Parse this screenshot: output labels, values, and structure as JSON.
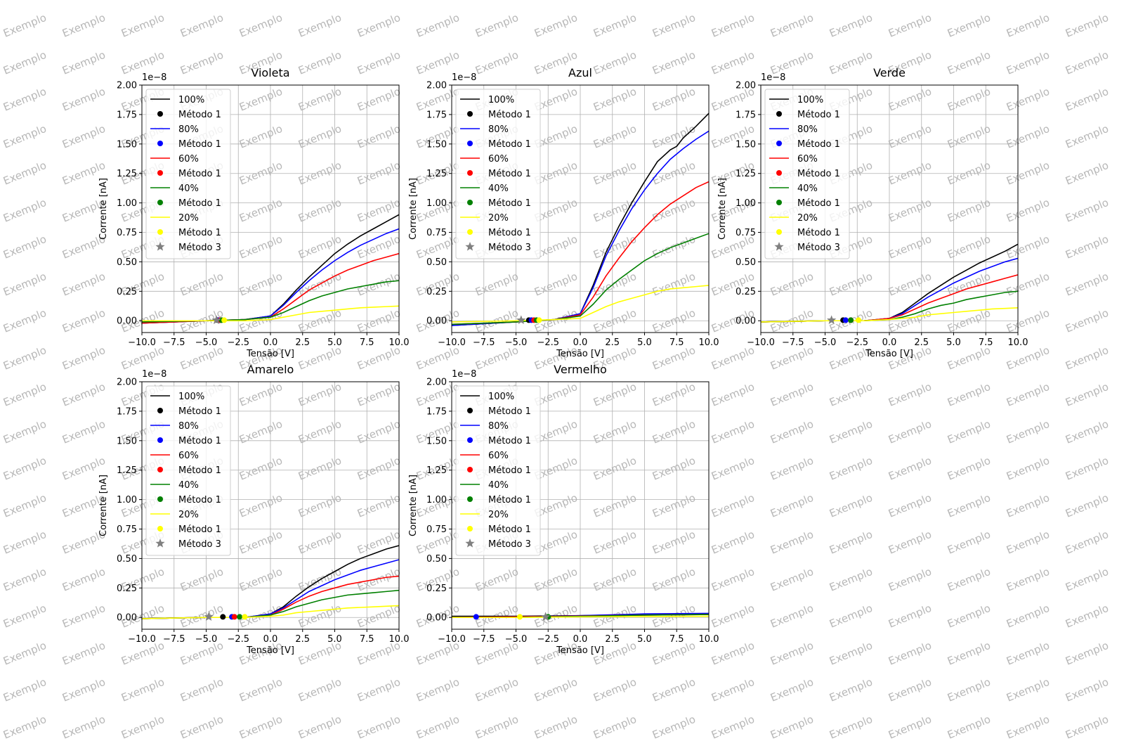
{
  "watermark_text": "Exemplo",
  "shared": {
    "xlabel": "Tensão [V]",
    "ylabel": "Corrente [nA]",
    "offset_text": "1e−8",
    "xlim": [
      -10,
      10
    ],
    "ylim": [
      -0.1,
      2.0
    ],
    "xticks": [
      "−10.0",
      "−7.5",
      "−5.0",
      "−2.5",
      "0.0",
      "2.5",
      "5.0",
      "7.5",
      "10.0"
    ],
    "xtick_values": [
      -10,
      -7.5,
      -5,
      -2.5,
      0,
      2.5,
      5,
      7.5,
      10
    ],
    "yticks": [
      "0.00",
      "0.25",
      "0.50",
      "0.75",
      "1.00",
      "1.25",
      "1.50",
      "1.75",
      "2.00"
    ],
    "ytick_values": [
      0,
      0.25,
      0.5,
      0.75,
      1.0,
      1.25,
      1.5,
      1.75,
      2.0
    ],
    "grid": true,
    "legend_position": "upper-left",
    "legend_entries": [
      {
        "label": "100%",
        "kind": "line",
        "color": "#000000"
      },
      {
        "label": "Método 1",
        "kind": "dot",
        "color": "#000000"
      },
      {
        "label": "80%",
        "kind": "line",
        "color": "#0000ff"
      },
      {
        "label": "Método 1",
        "kind": "dot",
        "color": "#0000ff"
      },
      {
        "label": "60%",
        "kind": "line",
        "color": "#ff0000"
      },
      {
        "label": "Método 1",
        "kind": "dot",
        "color": "#ff0000"
      },
      {
        "label": "40%",
        "kind": "line",
        "color": "#008000"
      },
      {
        "label": "Método 1",
        "kind": "dot",
        "color": "#008000"
      },
      {
        "label": "20%",
        "kind": "line",
        "color": "#ffff00"
      },
      {
        "label": "Método 1",
        "kind": "dot",
        "color": "#ffff00"
      },
      {
        "label": "Método 3",
        "kind": "star",
        "color": "#808080"
      }
    ]
  },
  "chart_data": [
    {
      "type": "line",
      "title": "Violeta",
      "series": [
        {
          "name": "100%",
          "color": "#000000",
          "x": [
            -10,
            -5,
            -2,
            0,
            1,
            2,
            3,
            4,
            5,
            6,
            7,
            8,
            9,
            10
          ],
          "y": [
            -0.02,
            0.0,
            0.01,
            0.04,
            0.14,
            0.26,
            0.37,
            0.47,
            0.57,
            0.65,
            0.72,
            0.78,
            0.84,
            0.9
          ]
        },
        {
          "name": "80%",
          "color": "#0000ff",
          "x": [
            -10,
            -5,
            -2,
            0,
            1,
            2,
            3,
            4,
            5,
            6,
            7,
            8,
            9,
            10
          ],
          "y": [
            -0.02,
            0.0,
            0.01,
            0.04,
            0.13,
            0.24,
            0.34,
            0.43,
            0.51,
            0.58,
            0.64,
            0.69,
            0.74,
            0.78
          ]
        },
        {
          "name": "60%",
          "color": "#ff0000",
          "x": [
            -10,
            -5,
            -2,
            0,
            1,
            2,
            3,
            4,
            5,
            6,
            7,
            8,
            9,
            10
          ],
          "y": [
            -0.02,
            0.0,
            0.01,
            0.03,
            0.1,
            0.18,
            0.26,
            0.32,
            0.38,
            0.43,
            0.47,
            0.51,
            0.54,
            0.57
          ]
        },
        {
          "name": "40%",
          "color": "#008000",
          "x": [
            -10,
            -5,
            -2,
            0,
            1,
            2,
            3,
            4,
            5,
            6,
            7,
            8,
            9,
            10
          ],
          "y": [
            -0.01,
            0.0,
            0.01,
            0.03,
            0.07,
            0.12,
            0.17,
            0.21,
            0.24,
            0.27,
            0.29,
            0.31,
            0.33,
            0.34
          ]
        },
        {
          "name": "20%",
          "color": "#ffff00",
          "x": [
            -10,
            -5,
            -2,
            0,
            1,
            2,
            3,
            4,
            5,
            6,
            7,
            8,
            9,
            10
          ],
          "y": [
            0.0,
            0.0,
            0.0,
            0.01,
            0.03,
            0.05,
            0.07,
            0.08,
            0.09,
            0.1,
            0.11,
            0.115,
            0.12,
            0.125
          ]
        }
      ],
      "metodo1_points": [
        {
          "color": "#000000",
          "x": -4.1,
          "y": 0.005
        },
        {
          "color": "#0000ff",
          "x": -4.0,
          "y": 0.005
        },
        {
          "color": "#ff0000",
          "x": -3.9,
          "y": 0.005
        },
        {
          "color": "#008000",
          "x": -3.8,
          "y": 0.005
        },
        {
          "color": "#ffff00",
          "x": -3.6,
          "y": 0.005
        }
      ],
      "metodo3_point": {
        "x": -4.2,
        "y": 0.005
      }
    },
    {
      "type": "line",
      "title": "Azul",
      "series": [
        {
          "name": "100%",
          "color": "#000000",
          "x": [
            -10,
            -5,
            -2,
            0,
            1,
            2,
            3,
            4,
            5,
            6,
            7,
            7.5,
            8,
            9,
            10
          ],
          "y": [
            -0.04,
            -0.01,
            0.01,
            0.06,
            0.3,
            0.58,
            0.8,
            1.0,
            1.18,
            1.35,
            1.45,
            1.48,
            1.55,
            1.65,
            1.76
          ]
        },
        {
          "name": "80%",
          "color": "#0000ff",
          "x": [
            -10,
            -5,
            -2,
            0,
            1,
            2,
            3,
            4,
            5,
            6,
            7,
            8,
            9,
            10
          ],
          "y": [
            -0.04,
            -0.01,
            0.01,
            0.06,
            0.28,
            0.55,
            0.76,
            0.95,
            1.11,
            1.25,
            1.37,
            1.46,
            1.54,
            1.61
          ]
        },
        {
          "name": "60%",
          "color": "#ff0000",
          "x": [
            -10,
            -5,
            -2,
            0,
            1,
            2,
            3,
            4,
            5,
            6,
            7,
            8,
            9,
            10
          ],
          "y": [
            -0.03,
            -0.01,
            0.01,
            0.05,
            0.2,
            0.38,
            0.53,
            0.67,
            0.79,
            0.9,
            0.99,
            1.06,
            1.13,
            1.18
          ]
        },
        {
          "name": "40%",
          "color": "#008000",
          "x": [
            -10,
            -5,
            -2,
            0,
            1,
            2,
            3,
            4,
            5,
            6,
            7,
            8,
            9,
            10
          ],
          "y": [
            -0.03,
            -0.01,
            0.01,
            0.04,
            0.14,
            0.26,
            0.35,
            0.43,
            0.51,
            0.57,
            0.62,
            0.66,
            0.7,
            0.74
          ]
        },
        {
          "name": "20%",
          "color": "#ffff00",
          "x": [
            -10,
            -5,
            -2,
            0,
            1,
            2,
            3,
            4,
            5,
            6,
            7,
            8,
            9,
            10
          ],
          "y": [
            -0.01,
            0.0,
            0.01,
            0.02,
            0.07,
            0.12,
            0.16,
            0.19,
            0.22,
            0.25,
            0.27,
            0.28,
            0.29,
            0.3
          ]
        }
      ],
      "metodo1_points": [
        {
          "color": "#000000",
          "x": -4.0,
          "y": 0.005
        },
        {
          "color": "#0000ff",
          "x": -3.8,
          "y": 0.005
        },
        {
          "color": "#ff0000",
          "x": -3.6,
          "y": 0.005
        },
        {
          "color": "#008000",
          "x": -3.4,
          "y": 0.005
        },
        {
          "color": "#ffff00",
          "x": -3.2,
          "y": 0.005
        }
      ],
      "metodo3_point": {
        "x": -4.6,
        "y": 0.005
      }
    },
    {
      "type": "line",
      "title": "Verde",
      "series": [
        {
          "name": "100%",
          "color": "#000000",
          "x": [
            -10,
            -5,
            -2,
            0,
            1,
            2,
            3,
            4,
            5,
            6,
            7,
            8,
            9,
            10
          ],
          "y": [
            -0.01,
            0.0,
            0.0,
            0.02,
            0.07,
            0.15,
            0.23,
            0.3,
            0.37,
            0.43,
            0.49,
            0.54,
            0.59,
            0.65
          ]
        },
        {
          "name": "80%",
          "color": "#0000ff",
          "x": [
            -10,
            -5,
            -2,
            0,
            1,
            2,
            3,
            4,
            5,
            6,
            7,
            8,
            9,
            10
          ],
          "y": [
            -0.01,
            0.0,
            0.0,
            0.02,
            0.06,
            0.13,
            0.2,
            0.26,
            0.32,
            0.37,
            0.42,
            0.46,
            0.5,
            0.53
          ]
        },
        {
          "name": "60%",
          "color": "#ff0000",
          "x": [
            -10,
            -5,
            -2,
            0,
            1,
            2,
            3,
            4,
            5,
            6,
            7,
            8,
            9,
            10
          ],
          "y": [
            -0.01,
            0.0,
            0.0,
            0.02,
            0.05,
            0.1,
            0.15,
            0.19,
            0.23,
            0.27,
            0.3,
            0.33,
            0.36,
            0.39
          ]
        },
        {
          "name": "40%",
          "color": "#008000",
          "x": [
            -10,
            -5,
            -2,
            0,
            1,
            2,
            3,
            4,
            5,
            6,
            7,
            8,
            9,
            10
          ],
          "y": [
            -0.01,
            0.0,
            0.0,
            0.01,
            0.03,
            0.06,
            0.1,
            0.13,
            0.15,
            0.18,
            0.2,
            0.22,
            0.24,
            0.25
          ]
        },
        {
          "name": "20%",
          "color": "#ffff00",
          "x": [
            -10,
            -5,
            -2,
            0,
            1,
            2,
            3,
            4,
            5,
            6,
            7,
            8,
            9,
            10
          ],
          "y": [
            -0.01,
            0.0,
            0.0,
            0.01,
            0.02,
            0.03,
            0.05,
            0.06,
            0.07,
            0.08,
            0.09,
            0.1,
            0.105,
            0.11
          ]
        }
      ],
      "metodo1_points": [
        {
          "color": "#000000",
          "x": -3.6,
          "y": 0.005
        },
        {
          "color": "#0000ff",
          "x": -3.4,
          "y": 0.005
        },
        {
          "color": "#ff0000",
          "x": -3.0,
          "y": 0.005
        },
        {
          "color": "#008000",
          "x": -3.0,
          "y": 0.005
        },
        {
          "color": "#ffff00",
          "x": -2.4,
          "y": 0.005
        }
      ],
      "metodo3_point": {
        "x": -4.5,
        "y": 0.005
      }
    },
    {
      "type": "line",
      "title": "Amarelo",
      "series": [
        {
          "name": "100%",
          "color": "#000000",
          "x": [
            -10,
            -5,
            -2,
            0,
            1,
            2,
            3,
            4,
            5,
            6,
            7,
            8,
            9,
            10
          ],
          "y": [
            -0.01,
            0.0,
            0.0,
            0.03,
            0.09,
            0.18,
            0.26,
            0.33,
            0.39,
            0.45,
            0.5,
            0.54,
            0.58,
            0.61
          ]
        },
        {
          "name": "80%",
          "color": "#0000ff",
          "x": [
            -10,
            -5,
            -2,
            0,
            1,
            2,
            3,
            4,
            5,
            6,
            7,
            8,
            9,
            10
          ],
          "y": [
            -0.01,
            0.0,
            0.0,
            0.03,
            0.08,
            0.15,
            0.22,
            0.27,
            0.32,
            0.36,
            0.4,
            0.43,
            0.46,
            0.49
          ]
        },
        {
          "name": "60%",
          "color": "#ff0000",
          "x": [
            -10,
            -5,
            -2,
            0,
            1,
            2,
            3,
            4,
            5,
            6,
            7,
            8,
            9,
            10
          ],
          "y": [
            -0.01,
            0.0,
            0.0,
            0.02,
            0.07,
            0.13,
            0.18,
            0.22,
            0.25,
            0.28,
            0.3,
            0.32,
            0.34,
            0.35
          ]
        },
        {
          "name": "40%",
          "color": "#008000",
          "x": [
            -10,
            -5,
            -2,
            0,
            1,
            2,
            3,
            4,
            5,
            6,
            7,
            8,
            9,
            10
          ],
          "y": [
            -0.01,
            0.0,
            0.0,
            0.02,
            0.05,
            0.09,
            0.12,
            0.15,
            0.17,
            0.19,
            0.2,
            0.21,
            0.22,
            0.23
          ]
        },
        {
          "name": "20%",
          "color": "#ffff00",
          "x": [
            -10,
            -5,
            -2,
            0,
            1,
            2,
            3,
            4,
            5,
            6,
            7,
            8,
            9,
            10
          ],
          "y": [
            -0.01,
            0.0,
            0.0,
            0.01,
            0.02,
            0.04,
            0.05,
            0.06,
            0.07,
            0.08,
            0.085,
            0.09,
            0.095,
            0.1
          ]
        }
      ],
      "metodo1_points": [
        {
          "color": "#000000",
          "x": -3.7,
          "y": 0.005
        },
        {
          "color": "#0000ff",
          "x": -3.0,
          "y": 0.005
        },
        {
          "color": "#ff0000",
          "x": -2.8,
          "y": 0.005
        },
        {
          "color": "#008000",
          "x": -2.4,
          "y": 0.005
        },
        {
          "color": "#ffff00",
          "x": -2.0,
          "y": 0.005
        }
      ],
      "metodo3_point": {
        "x": -4.8,
        "y": 0.005
      }
    },
    {
      "type": "line",
      "title": "Vermelho",
      "series": [
        {
          "name": "100%",
          "color": "#000000",
          "x": [
            -10,
            -5,
            0,
            5,
            10
          ],
          "y": [
            0.01,
            0.01,
            0.015,
            0.025,
            0.03
          ]
        },
        {
          "name": "80%",
          "color": "#0000ff",
          "x": [
            -10,
            -5,
            0,
            5,
            10
          ],
          "y": [
            0.0,
            0.005,
            0.015,
            0.03,
            0.035
          ]
        },
        {
          "name": "60%",
          "color": "#ff0000",
          "x": [
            -10,
            -5,
            0,
            5,
            10
          ],
          "y": [
            0.0,
            0.005,
            0.012,
            0.02,
            0.025
          ]
        },
        {
          "name": "40%",
          "color": "#008000",
          "x": [
            -10,
            -5,
            0,
            5,
            10
          ],
          "y": [
            0.0,
            0.0,
            0.01,
            0.02,
            0.025
          ]
        },
        {
          "name": "20%",
          "color": "#ffff00",
          "x": [
            -10,
            -5,
            0,
            5,
            10
          ],
          "y": [
            0.0,
            0.0,
            0.005,
            0.008,
            0.01
          ]
        }
      ],
      "metodo1_points": [
        {
          "color": "#0000ff",
          "x": -8.1,
          "y": 0.005
        },
        {
          "color": "#ffff00",
          "x": -4.7,
          "y": 0.005
        },
        {
          "color": "#008000",
          "x": -2.5,
          "y": 0.005
        }
      ],
      "metodo3_point": {
        "x": -2.7,
        "y": 0.005
      }
    }
  ]
}
